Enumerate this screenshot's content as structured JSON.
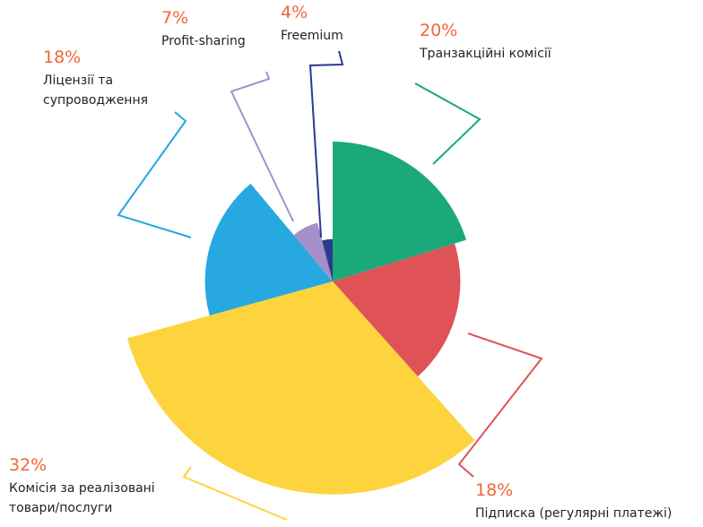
{
  "chart_data": {
    "type": "pie",
    "categories": [
      [
        "Транзакційні комісії"
      ],
      [
        "Підписка (регулярні платежі)"
      ],
      [
        "Комісія за реалізовані",
        "товари/послуги"
      ],
      [
        "Ліцензії та",
        "супроводження"
      ],
      [
        "Profit-sharing"
      ],
      [
        "Freemium"
      ]
    ],
    "values": [
      20,
      18,
      32,
      18,
      7,
      4
    ],
    "value_labels": [
      "20%",
      "18%",
      "32%",
      "18%",
      "7%",
      "4%"
    ],
    "colors": [
      "#1ba97a",
      "#df5357",
      "#fdd43d",
      "#27a8e0",
      "#a58fc9",
      "#2c3a8e"
    ],
    "label_color": "#f0663a"
  }
}
